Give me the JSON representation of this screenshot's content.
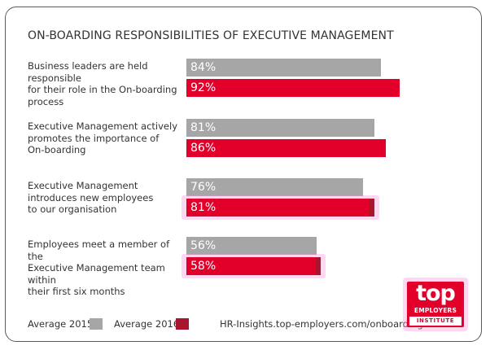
{
  "chart_data": {
    "type": "bar",
    "orientation": "horizontal",
    "title": "ON-BOARDING RESPONSIBILITIES OF EXECUTIVE MANAGEMENT",
    "categories": [
      "Business leaders are held responsible for their role in the On-boarding process",
      "Executive Management actively promotes the importance of On-boarding",
      "Executive Management introduces new employees to our organisation",
      "Employees meet a member of the Executive Management team within their first six months"
    ],
    "category_lines": [
      [
        "Business leaders are held responsible",
        "for their role in the On-boarding",
        "process"
      ],
      [
        "Executive Management actively",
        "promotes the importance of",
        "On-boarding"
      ],
      [
        "Executive Management",
        "introduces new employees",
        "to our organisation"
      ],
      [
        "Employees meet a member of the",
        "Executive Management team within",
        "their first six months"
      ]
    ],
    "series": [
      {
        "name": "Average 2015",
        "values": [
          84,
          81,
          76,
          56
        ],
        "labels": [
          "84%",
          "81%",
          "76%",
          "56%"
        ],
        "color": "#a6a6a6"
      },
      {
        "name": "Average 2016",
        "values": [
          92,
          86,
          81,
          58
        ],
        "labels": [
          "92%",
          "86%",
          "81%",
          "58%"
        ],
        "color": "#e2002b"
      }
    ],
    "unit": "%",
    "xlim": [
      0,
      100
    ],
    "legend_position": "bottom-left",
    "xlabel": "",
    "ylabel": ""
  },
  "source": "HR-Insights.top-employers.com/onboarding",
  "logo": {
    "top": "top",
    "employers": "EMPLOYERS",
    "institute": "INSTITUTE"
  },
  "colors": {
    "text": "#333333",
    "frame": "#5a5a5a",
    "highlight": "#ff8cdc"
  }
}
